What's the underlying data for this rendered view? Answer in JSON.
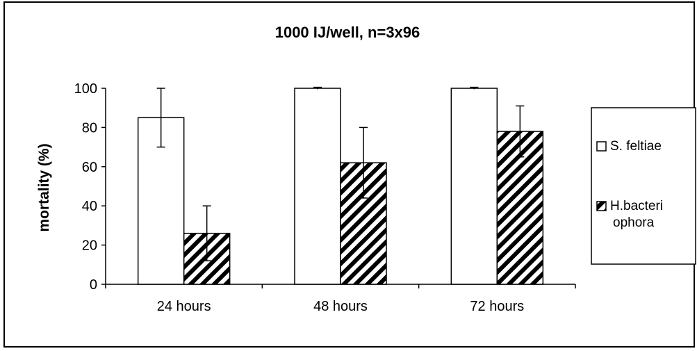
{
  "chart_data": {
    "type": "bar",
    "title": "1000 IJ/well, n=3x96",
    "xlabel": "",
    "ylabel": "mortality (%)",
    "ylim": [
      0,
      100
    ],
    "yticks": [
      0,
      20,
      40,
      60,
      80,
      100
    ],
    "grid": false,
    "legend_position": "right",
    "categories": [
      "24 hours",
      "48 hours",
      "72 hours"
    ],
    "series": [
      {
        "name": "S. feltiae",
        "values": [
          85,
          100,
          100
        ],
        "errors": [
          15,
          0.5,
          0.5
        ],
        "fill": "#ffffff",
        "pattern": "none"
      },
      {
        "name": "H.bacteriophora",
        "legend_lines": [
          "H.bacteri",
          "ophora"
        ],
        "values": [
          26,
          62,
          78
        ],
        "errors": [
          14,
          18,
          13
        ],
        "fill": "#ffffff",
        "pattern": "diagonal-stripes"
      }
    ],
    "colors": {
      "bar_stroke": "#000000",
      "hatch": "#000000",
      "background": "#ffffff"
    }
  }
}
